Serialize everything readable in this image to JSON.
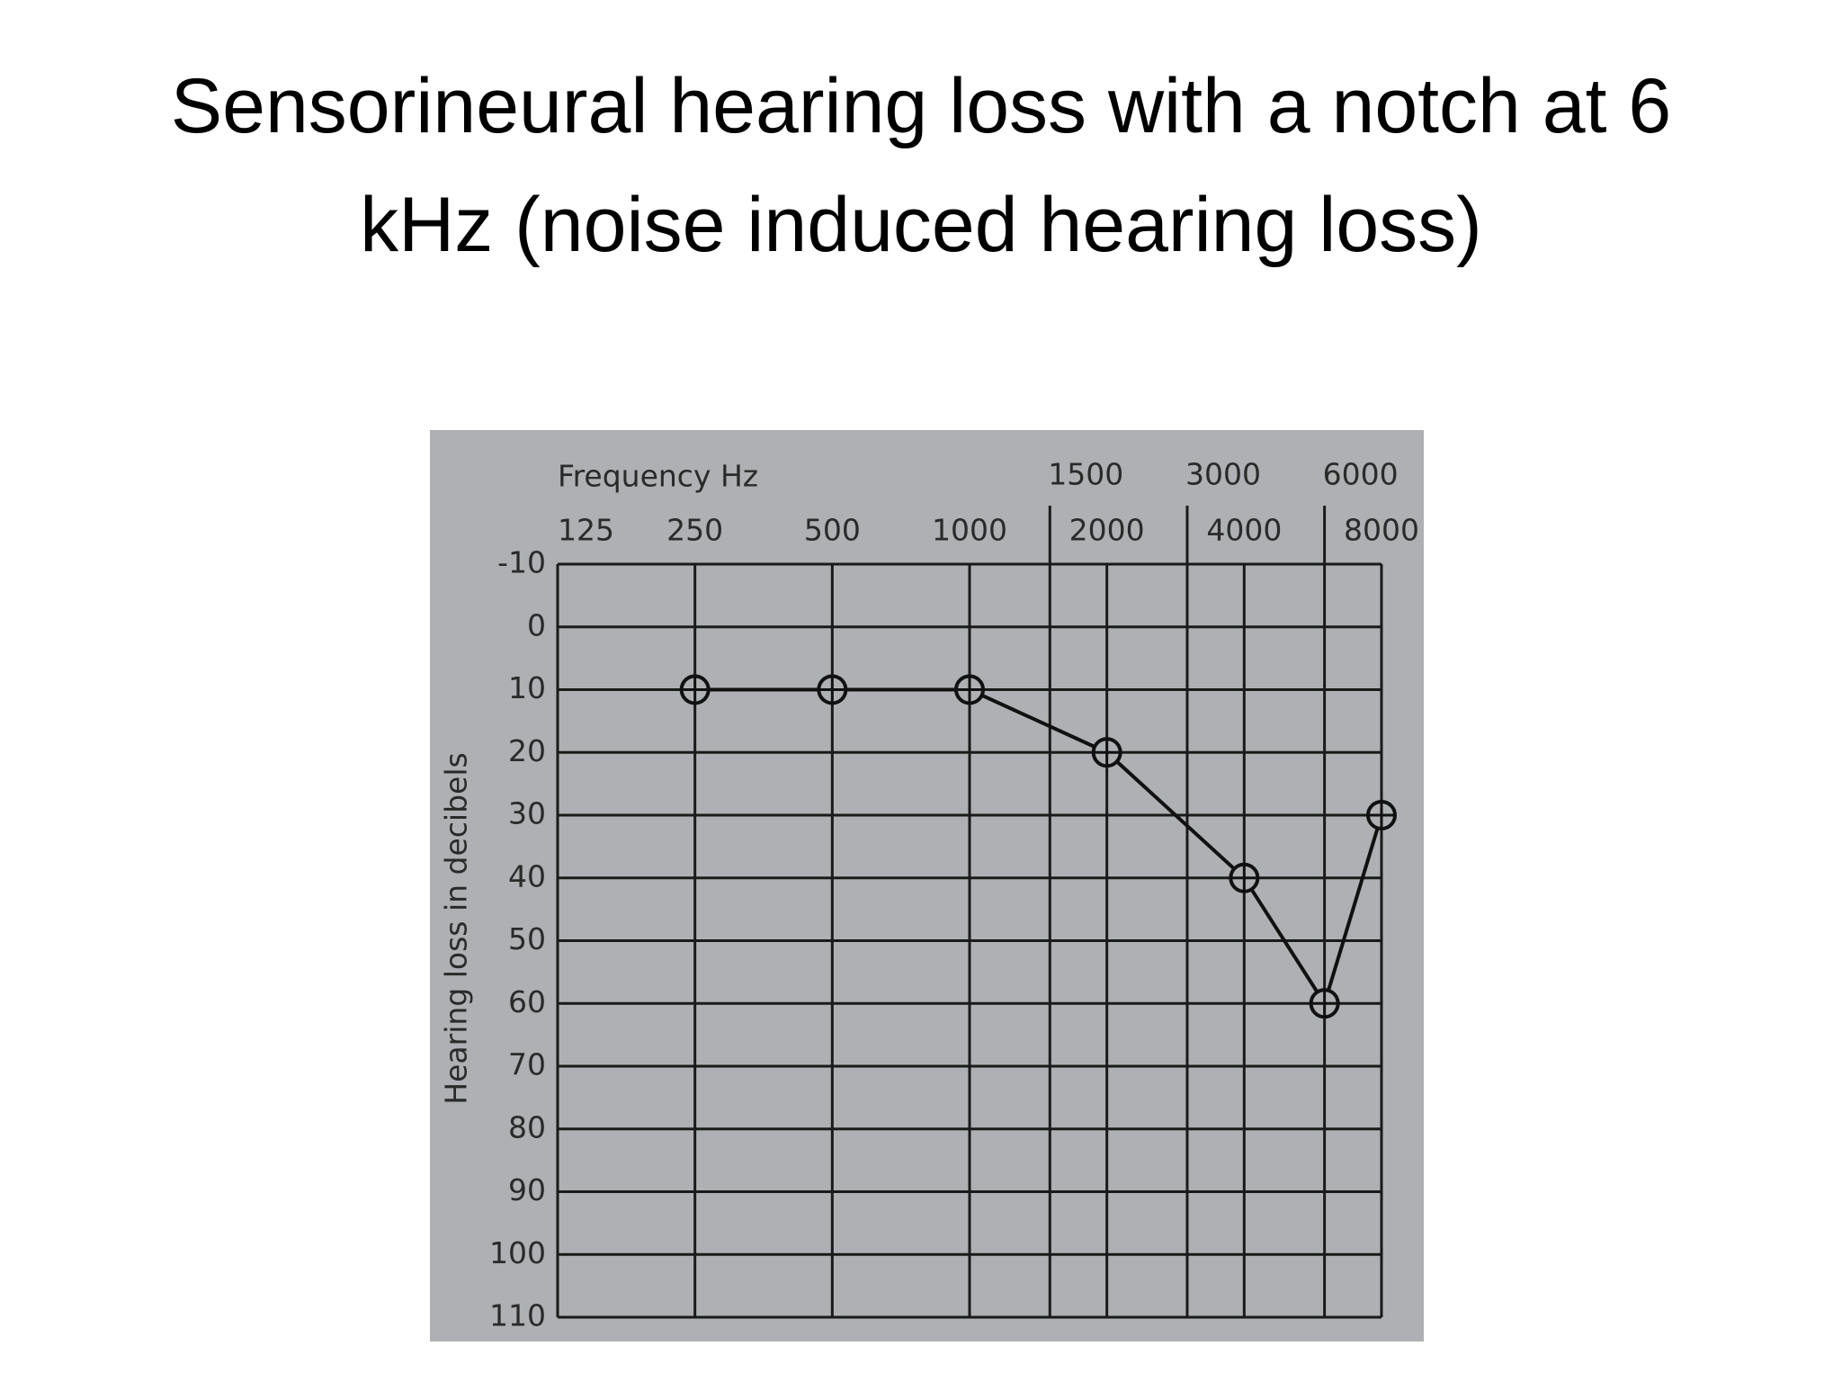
{
  "chart_data": {
    "type": "line",
    "title": "Sensorineural hearing loss with a notch at 6 kHz (noise induced hearing loss)",
    "x_label": "Frequency Hz",
    "y_label": "Hearing loss in decibels",
    "x": [
      250,
      500,
      1000,
      2000,
      4000,
      6000,
      8000
    ],
    "values": [
      10,
      10,
      10,
      20,
      40,
      60,
      30
    ],
    "color": "#111111",
    "x_log": true,
    "xlim": [
      125,
      8000
    ],
    "xticks": [
      125,
      250,
      500,
      1000,
      2000,
      4000,
      8000
    ],
    "xticks_top_row": [
      1500,
      3000,
      6000
    ],
    "ylim": [
      -10,
      110
    ],
    "y_inverted": true,
    "yticks": [
      -10,
      0,
      10,
      20,
      30,
      40,
      50,
      60,
      70,
      80,
      90,
      100,
      110
    ],
    "grid": true
  }
}
